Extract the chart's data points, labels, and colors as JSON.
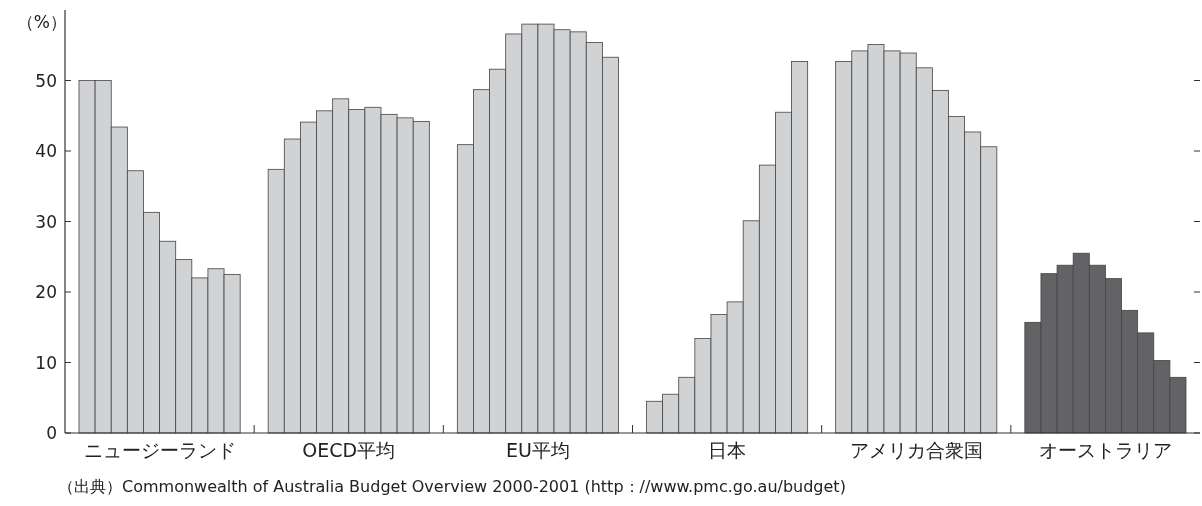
{
  "chart_data": {
    "type": "bar",
    "ylabel": "（%）",
    "categories": [
      "ニュージーランド",
      "OECD平均",
      "EU平均",
      "日本",
      "アメリカ合衆国",
      "オーストラリア"
    ],
    "series": [
      {
        "colors": [
          "#d1d2d4",
          "#d1d2d4",
          "#d1d2d4",
          "#d1d2d4",
          "#d1d2d4",
          "#636365"
        ],
        "values": [
          50,
          37.4,
          40.9,
          4.5,
          52.7,
          15.7
        ]
      },
      {
        "colors": [
          "#d1d2d4",
          "#d1d2d4",
          "#d1d2d4",
          "#d1d2d4",
          "#d1d2d4",
          "#636365"
        ],
        "values": [
          50,
          41.7,
          48.7,
          5.5,
          54.2,
          22.6
        ]
      },
      {
        "colors": [
          "#d1d2d4",
          "#d1d2d4",
          "#d1d2d4",
          "#d1d2d4",
          "#d1d2d4",
          "#636365"
        ],
        "values": [
          43.4,
          44.1,
          51.6,
          7.9,
          55.1,
          23.8
        ]
      },
      {
        "colors": [
          "#d1d2d4",
          "#d1d2d4",
          "#d1d2d4",
          "#d1d2d4",
          "#d1d2d4",
          "#636365"
        ],
        "values": [
          37.2,
          45.7,
          56.6,
          13.4,
          54.2,
          25.5
        ]
      },
      {
        "colors": [
          "#d1d2d4",
          "#d1d2d4",
          "#d1d2d4",
          "#d1d2d4",
          "#d1d2d4",
          "#636365"
        ],
        "values": [
          31.3,
          47.4,
          58,
          16.8,
          53.9,
          23.8
        ]
      },
      {
        "colors": [
          "#d1d2d4",
          "#d1d2d4",
          "#d1d2d4",
          "#d1d2d4",
          "#d1d2d4",
          "#636365"
        ],
        "values": [
          27.2,
          45.9,
          58,
          18.6,
          51.8,
          21.9
        ]
      },
      {
        "colors": [
          "#d1d2d4",
          "#d1d2d4",
          "#d1d2d4",
          "#d1d2d4",
          "#d1d2d4",
          "#636365"
        ],
        "values": [
          24.6,
          46.2,
          57.2,
          30.1,
          48.6,
          17.4
        ]
      },
      {
        "colors": [
          "#d1d2d4",
          "#d1d2d4",
          "#d1d2d4",
          "#d1d2d4",
          "#d1d2d4",
          "#636365"
        ],
        "values": [
          22,
          45.2,
          56.9,
          38,
          44.9,
          14.2
        ]
      },
      {
        "colors": [
          "#d1d2d4",
          "#d1d2d4",
          "#d1d2d4",
          "#d1d2d4",
          "#d1d2d4",
          "#636365"
        ],
        "values": [
          23.3,
          44.7,
          55.4,
          45.5,
          42.7,
          10.3
        ]
      },
      {
        "colors": [
          "#d1d2d4",
          "#d1d2d4",
          "#d1d2d4",
          "#d1d2d4",
          "#d1d2d4",
          "#636365"
        ],
        "values": [
          22.5,
          44.2,
          53.3,
          52.7,
          40.6,
          7.9
        ]
      }
    ],
    "ylim": [
      0,
      60
    ],
    "yticks": [
      0,
      10,
      20,
      30,
      40,
      50
    ],
    "annotations": [
      "（出典）Commonwealth of Australia Budget Overview 2000-2001 (http：//www.pmc.go.au/budget)"
    ]
  }
}
